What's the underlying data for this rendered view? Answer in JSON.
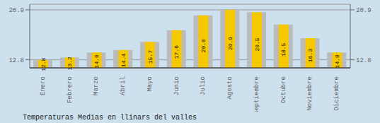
{
  "chart_data": {
    "type": "bar",
    "title": "Temperaturas Medias en llinars del valles",
    "categories": [
      "Enero",
      "Febrero",
      "Marzo",
      "Abril",
      "Mayo",
      "Junio",
      "Julio",
      "Agosto",
      "Septiembre",
      "Octubre",
      "Noviembre",
      "Diciembre"
    ],
    "values": [
      12.8,
      13.2,
      14.0,
      14.4,
      15.7,
      17.6,
      20.0,
      20.9,
      20.5,
      18.5,
      16.3,
      14.0
    ],
    "value_labels": [
      "12.8",
      "13.2",
      "14.0",
      "14.4",
      "15.7",
      "17.6",
      "20.0",
      "20.9",
      "20.5",
      "18.5",
      "16.3",
      "14.0"
    ],
    "data_labels": true,
    "color": "#F5C800",
    "ylim": [
      11.5,
      21.8
    ],
    "yticks": [
      12.8,
      20.9
    ],
    "grid": true
  }
}
